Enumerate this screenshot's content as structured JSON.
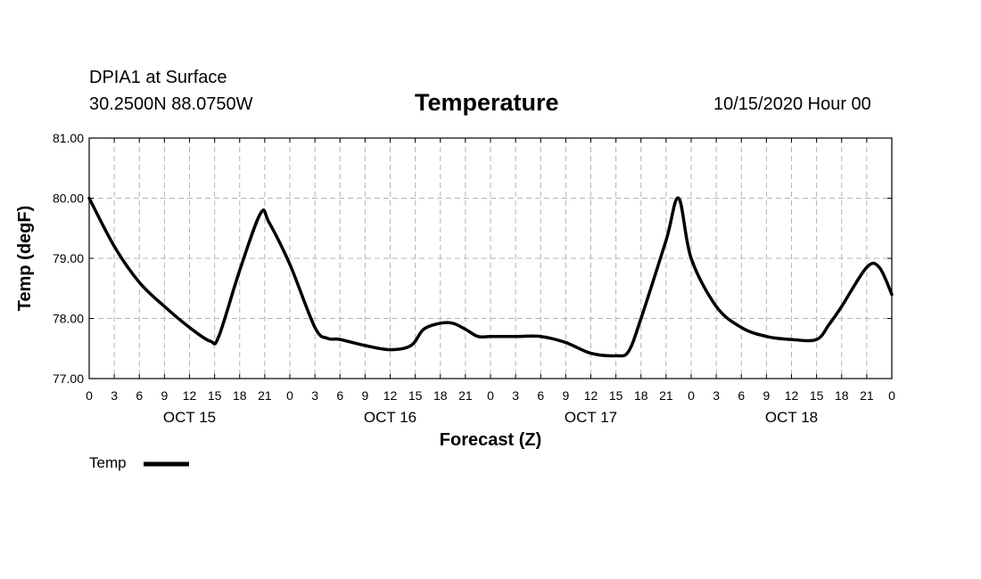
{
  "header": {
    "station_name": "DPIA1 at Surface",
    "coords": "30.2500N 88.0750W",
    "title": "Temperature",
    "run_time": "10/15/2020 Hour 00"
  },
  "chart_data": {
    "type": "line",
    "title": "Temperature",
    "xlabel": "Forecast (Z)",
    "ylabel": "Temp (degF)",
    "ylim": [
      77.0,
      81.0
    ],
    "xlim": [
      0,
      96
    ],
    "grid": true,
    "y_ticks": [
      "77.00",
      "78.00",
      "79.00",
      "80.00",
      "81.00"
    ],
    "x_tick_labels": [
      "0",
      "3",
      "6",
      "9",
      "12",
      "15",
      "18",
      "21",
      "0",
      "3",
      "6",
      "9",
      "12",
      "15",
      "18",
      "21",
      "0",
      "3",
      "6",
      "9",
      "12",
      "15",
      "18",
      "21",
      "0",
      "3",
      "6",
      "9",
      "12",
      "15",
      "18",
      "21",
      "0"
    ],
    "day_labels": [
      {
        "label": "OCT 15",
        "hour": 12
      },
      {
        "label": "OCT 16",
        "hour": 36
      },
      {
        "label": "OCT 17",
        "hour": 60
      },
      {
        "label": "OCT 18",
        "hour": 84
      }
    ],
    "legend": {
      "position": "bottom-left"
    },
    "series": [
      {
        "name": "Temp",
        "color": "#000000",
        "x": [
          0,
          3,
          6,
          9,
          12,
          14.5,
          15.5,
          18,
          20.5,
          21.5,
          24,
          27,
          28.5,
          30,
          33,
          36,
          38.5,
          40,
          42,
          43.5,
          45,
          46.5,
          48,
          51,
          54,
          57,
          60,
          63,
          64.5,
          66,
          69,
          70.5,
          72,
          75,
          78,
          81,
          84,
          87,
          88.5,
          90,
          93,
          94.5,
          96
        ],
        "values": [
          80.0,
          79.2,
          78.6,
          78.2,
          77.85,
          77.62,
          77.7,
          78.8,
          79.75,
          79.6,
          78.9,
          77.85,
          77.67,
          77.65,
          77.55,
          77.48,
          77.55,
          77.82,
          77.92,
          77.92,
          77.82,
          77.7,
          77.7,
          77.7,
          77.7,
          77.6,
          77.42,
          77.38,
          77.45,
          78.0,
          79.3,
          80.0,
          79.0,
          78.2,
          77.85,
          77.7,
          77.65,
          77.65,
          77.9,
          78.2,
          78.85,
          78.85,
          78.4
        ]
      }
    ]
  }
}
